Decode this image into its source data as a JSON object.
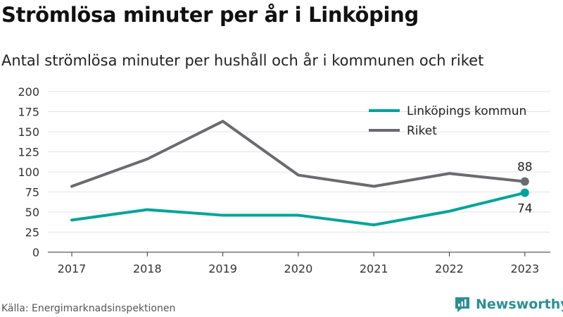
{
  "title": "Strömlösa minuter per år i Linköping",
  "subtitle": "Antal strömlösa minuter per hushåll och år i kommunen och riket",
  "source": "Källa: Energimarknadsinspektionen",
  "brand": {
    "name": "Newsworthy",
    "icon": "newsworthy-logo-icon",
    "color": "#2a8f95"
  },
  "chart_data": {
    "type": "line",
    "x": [
      "2017",
      "2018",
      "2019",
      "2020",
      "2021",
      "2022",
      "2023"
    ],
    "ylim": [
      0,
      200
    ],
    "yticks": [
      0,
      25,
      50,
      75,
      100,
      125,
      150,
      175,
      200
    ],
    "grid": true,
    "legend_position": "top-right",
    "series": [
      {
        "name": "Linköpings kommun",
        "color": "#00a39a",
        "values": [
          40,
          53,
          46,
          46,
          34,
          51,
          74
        ],
        "end_label": "74"
      },
      {
        "name": "Riket",
        "color": "#6b6a6e",
        "values": [
          82,
          116,
          163,
          96,
          82,
          98,
          88
        ],
        "end_label": "88"
      }
    ]
  }
}
